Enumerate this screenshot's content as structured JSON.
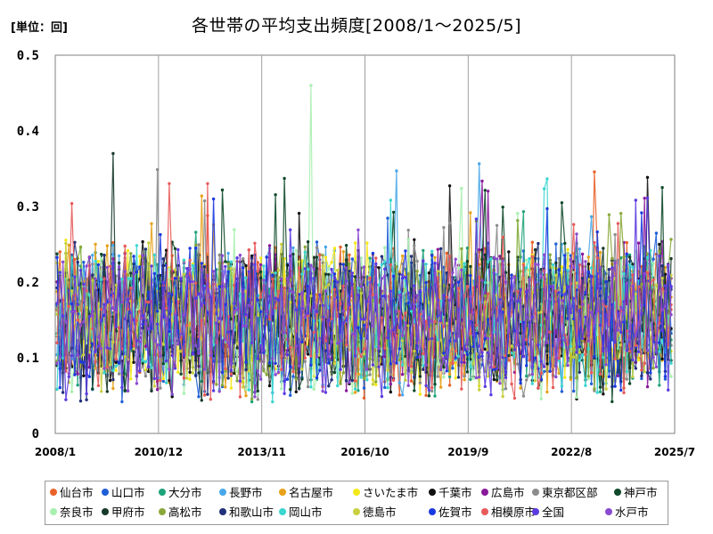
{
  "chart_data": {
    "type": "line",
    "title": "各世帯の平均支出頻度[2008/1～2025/5]",
    "unit_label": "[単位：回]",
    "xlabel": "",
    "ylabel": "",
    "ylim": [
      0,
      0.5
    ],
    "y_ticks": [
      "0.5",
      "0.4",
      "0.3",
      "0.2",
      "0.1",
      "0"
    ],
    "x_range": [
      "2008/1",
      "2025/7"
    ],
    "x_ticks": [
      "2008/1",
      "2010/12",
      "2013/11",
      "2016/10",
      "2019/9",
      "2022/8",
      "2025/7"
    ],
    "grid": "vertical",
    "legend_position": "bottom",
    "series": [
      {
        "name": "仙台市",
        "color": "#e8622a"
      },
      {
        "name": "山口市",
        "color": "#1f5fd6"
      },
      {
        "name": "大分市",
        "color": "#1fa37a"
      },
      {
        "name": "長野市",
        "color": "#4aa8e8"
      },
      {
        "name": "名古屋市",
        "color": "#e8a21a"
      },
      {
        "name": "さいたま市",
        "color": "#f5e81a"
      },
      {
        "name": "千葉市",
        "color": "#111111"
      },
      {
        "name": "広島市",
        "color": "#8a1a9a"
      },
      {
        "name": "東京都区部",
        "color": "#8c8c8c"
      },
      {
        "name": "神戸市",
        "color": "#0f4a2a"
      },
      {
        "name": "奈良市",
        "color": "#a8f0b0"
      },
      {
        "name": "甲府市",
        "color": "#163a2a"
      },
      {
        "name": "高松市",
        "color": "#8aa83a"
      },
      {
        "name": "和歌山市",
        "color": "#22307a"
      },
      {
        "name": "岡山市",
        "color": "#3ad6d0"
      },
      {
        "name": "徳島市",
        "color": "#c8d040"
      },
      {
        "name": "佐賀市",
        "color": "#1a3ae0"
      },
      {
        "name": "相模原市",
        "color": "#e85a5a"
      },
      {
        "name": "全国",
        "color": "#5a3ae0"
      },
      {
        "name": "水戸市",
        "color": "#8a4ad0"
      }
    ],
    "series_value_range": [
      0.01,
      0.46
    ],
    "series_typical_value": 0.15
  }
}
